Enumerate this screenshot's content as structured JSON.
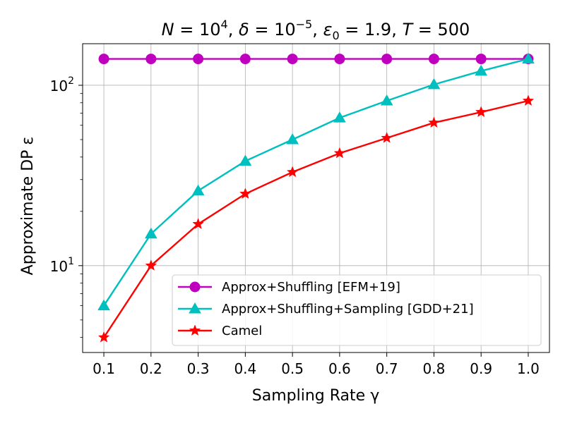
{
  "chart_data": {
    "type": "line",
    "title_parts": {
      "N": "N",
      "N_val": "10",
      "N_exp": "4",
      "delta": "δ",
      "delta_val": "10",
      "delta_exp": "−5",
      "eps": "ε",
      "eps_sub": "0",
      "eps_val": "1.9",
      "T": "T",
      "T_val": "500"
    },
    "xlabel": "Sampling Rate γ",
    "ylabel": "Approximate DP ε",
    "x": [
      0.1,
      0.2,
      0.3,
      0.4,
      0.5,
      0.6,
      0.7,
      0.8,
      0.9,
      1.0
    ],
    "x_tick_labels": [
      "0.1",
      "0.2",
      "0.3",
      "0.4",
      "0.5",
      "0.6",
      "0.7",
      "0.8",
      "0.9",
      "1.0"
    ],
    "y_scale": "log",
    "ylim": [
      3.3,
      170
    ],
    "xlim": [
      0.055,
      1.045
    ],
    "y_major_ticks": [
      {
        "value": 10,
        "base": "10",
        "exp": "1"
      },
      {
        "value": 100,
        "base": "10",
        "exp": "2"
      }
    ],
    "grid": true,
    "legend_position": "lower-right",
    "series": [
      {
        "name": "Approx+Shuffling [EFM+19]",
        "color": "#bf00bf",
        "marker": "circle",
        "values": [
          140,
          140,
          140,
          140,
          140,
          140,
          140,
          140,
          140,
          140
        ]
      },
      {
        "name": "Approx+Shuffling+Sampling [GDD+21]",
        "color": "#00bfbf",
        "marker": "triangle",
        "values": [
          6.0,
          15,
          26,
          38,
          50,
          66,
          82,
          101,
          120,
          140
        ]
      },
      {
        "name": "Camel",
        "color": "#ff0000",
        "marker": "star",
        "values": [
          4.0,
          10,
          17,
          25,
          33,
          42,
          51,
          62,
          71,
          82
        ]
      }
    ]
  }
}
